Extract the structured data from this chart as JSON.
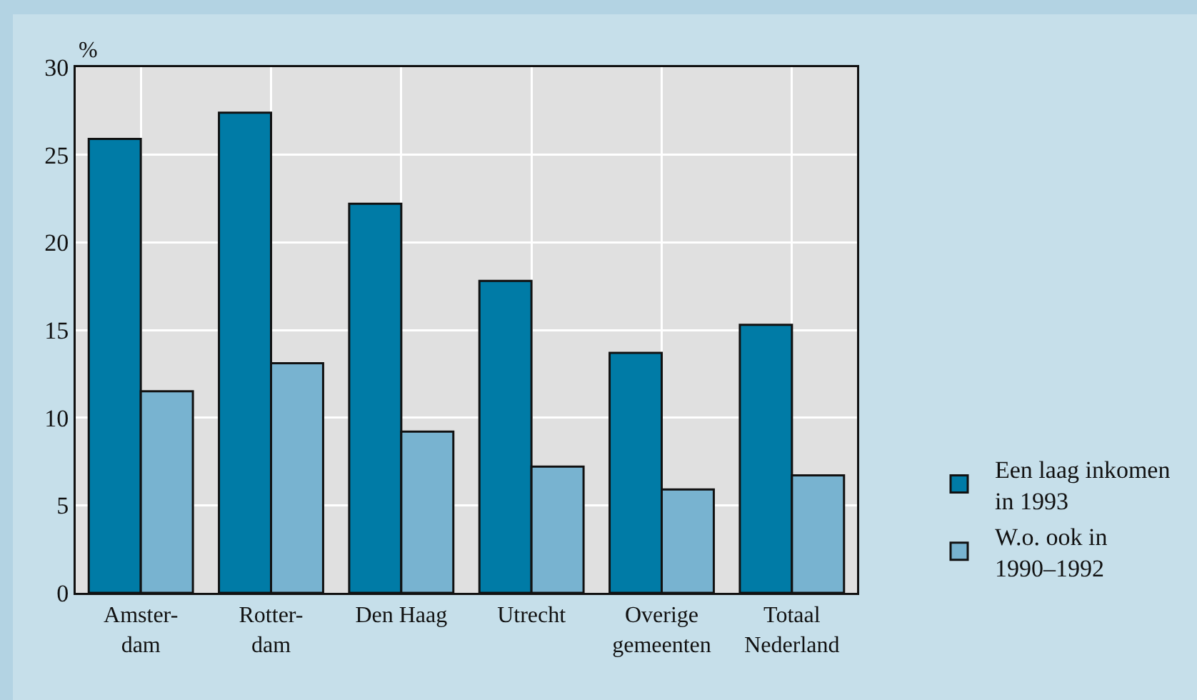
{
  "chart_data": {
    "type": "bar",
    "ylabel": "%",
    "categories": [
      "Amster-dam",
      "Rotter-dam",
      "Den Haag",
      "Utrecht",
      "Overige gemeenten",
      "Totaal Nederland"
    ],
    "series": [
      {
        "name": "Een laag inkomen in 1993",
        "color": "#007ba6",
        "values": [
          25.9,
          27.4,
          22.2,
          17.8,
          13.7,
          15.3
        ]
      },
      {
        "name": "W.o. ook in 1990–1992",
        "color": "#78b3d0",
        "values": [
          11.5,
          13.1,
          9.2,
          7.2,
          5.9,
          6.7
        ]
      }
    ],
    "ylim": [
      0,
      30
    ],
    "yticks": [
      0,
      5,
      10,
      15,
      20,
      25,
      30
    ],
    "grid": true,
    "legend": "right"
  }
}
